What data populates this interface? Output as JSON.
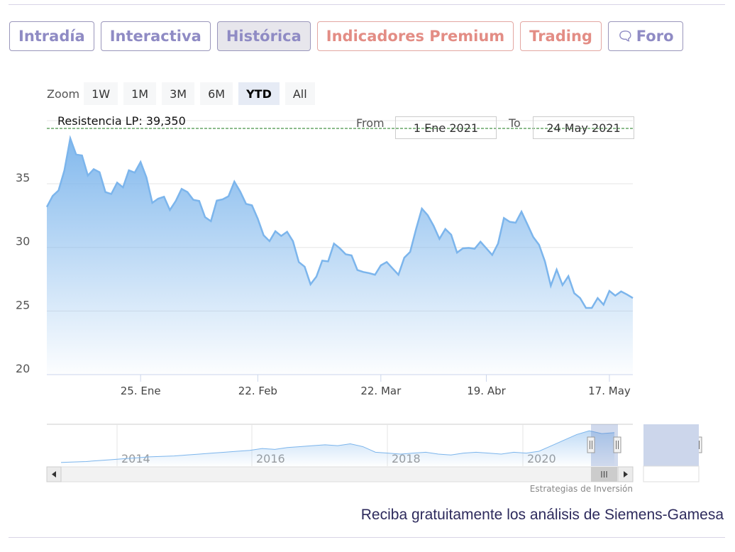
{
  "tabs": [
    {
      "label": "Intradía",
      "style": "normal"
    },
    {
      "label": "Interactiva",
      "style": "normal"
    },
    {
      "label": "Histórica",
      "style": "active"
    },
    {
      "label": "Indicadores Premium",
      "style": "red"
    },
    {
      "label": "Trading",
      "style": "red"
    },
    {
      "label": "Foro",
      "style": "normal",
      "icon": "chat-bubbles-icon"
    }
  ],
  "zoom": {
    "label": "Zoom",
    "buttons": [
      "1W",
      "1M",
      "3M",
      "6M",
      "YTD",
      "All"
    ],
    "selected": "YTD"
  },
  "range": {
    "from_label": "From",
    "from_value": "1 Ene 2021",
    "to_label": "To",
    "to_value": "24 May 2021"
  },
  "chart_data": {
    "type": "area",
    "ylim": [
      20,
      39.8
    ],
    "yticks": [
      20,
      25,
      30,
      35
    ],
    "grid": true,
    "colors": {
      "line": "#7cb5ec",
      "resistance": "#1a7a1a"
    },
    "resistance": {
      "label": "Resistencia LP: 39,350",
      "value": 39.35
    },
    "xticks": [
      {
        "label": "25. Ene",
        "index": 16
      },
      {
        "label": "22. Feb",
        "index": 36
      },
      {
        "label": "22. Mar",
        "index": 57
      },
      {
        "label": "19. Abr",
        "index": 75
      },
      {
        "label": "17. May",
        "index": 96
      }
    ],
    "values": [
      33.18,
      34.05,
      34.48,
      36.06,
      38.57,
      37.3,
      37.23,
      35.65,
      36.15,
      35.91,
      34.35,
      34.2,
      35.09,
      34.72,
      36.06,
      35.88,
      36.71,
      35.5,
      33.5,
      33.83,
      33.98,
      32.94,
      33.65,
      34.6,
      34.35,
      33.74,
      33.65,
      32.38,
      32.06,
      33.68,
      33.78,
      34.02,
      35.17,
      34.39,
      33.42,
      33.31,
      32.25,
      30.95,
      30.49,
      31.27,
      30.9,
      31.23,
      30.49,
      28.85,
      28.48,
      27.1,
      27.7,
      28.96,
      28.9,
      30.3,
      29.93,
      29.46,
      29.37,
      28.22,
      28.07,
      27.98,
      27.85,
      28.59,
      28.85,
      28.35,
      27.85,
      29.19,
      29.65,
      31.42,
      33.05,
      32.53,
      31.7,
      30.67,
      31.45,
      31.0,
      29.59,
      29.93,
      29.96,
      29.89,
      30.45,
      29.93,
      29.41,
      30.3,
      32.31,
      32.01,
      31.94,
      32.81,
      31.82,
      30.82,
      30.2,
      28.9,
      26.99,
      28.25,
      27.04,
      27.74,
      26.4,
      26.02,
      25.24,
      25.24,
      26.02,
      25.5,
      26.58,
      26.21,
      26.54,
      26.3,
      26.02
    ]
  },
  "navigator": {
    "year_labels": [
      "2014",
      "2016",
      "2018",
      "2020"
    ],
    "values": [
      4,
      4.5,
      5,
      6,
      7,
      8,
      9,
      10,
      10.5,
      11,
      12,
      13,
      14,
      15,
      16,
      17,
      19,
      18,
      20,
      21,
      22,
      23,
      22,
      24,
      21,
      15,
      14,
      13,
      14,
      15,
      13,
      12,
      14,
      15,
      14,
      13,
      15,
      14,
      16,
      22,
      28,
      34,
      38,
      35,
      36
    ]
  },
  "credit": "Estrategias de Inversión",
  "promo": "Reciba gratuitamente los análisis de Siemens-Gamesa"
}
